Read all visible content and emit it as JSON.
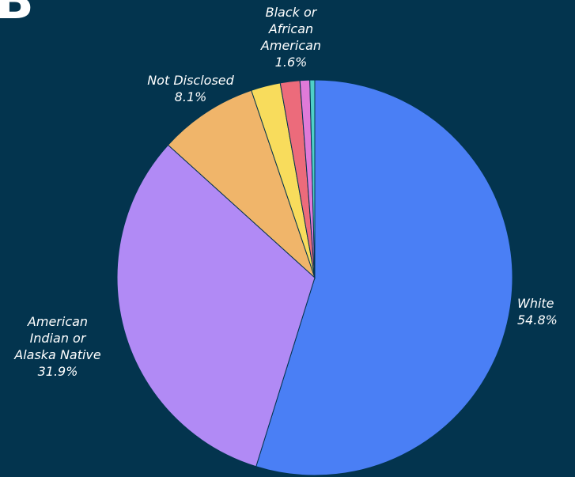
{
  "corner_letter": "B",
  "chart_data": {
    "type": "pie",
    "start_angle_deg": 0,
    "direction": "clockwise",
    "slices": [
      {
        "name": "White",
        "label_lines": [
          "White"
        ],
        "value_label": "54.8%",
        "value": 54.8,
        "color": "#4a7ff5"
      },
      {
        "name": "American Indian or Alaska Native",
        "label_lines": [
          "American",
          "Indian or",
          "Alaska Native"
        ],
        "value_label": "31.9%",
        "value": 31.9,
        "color": "#b18af5"
      },
      {
        "name": "Not Disclosed",
        "label_lines": [
          "Not Disclosed"
        ],
        "value_label": "8.1%",
        "value": 8.1,
        "color": "#f0b56a"
      },
      {
        "name": "",
        "label_lines": [],
        "value_label": "",
        "value": 2.4,
        "color": "#f8dc5c"
      },
      {
        "name": "Black or African American",
        "label_lines": [
          "Black or",
          "African",
          "American"
        ],
        "value_label": "1.6%",
        "value": 1.6,
        "color": "#ec6b7b"
      },
      {
        "name": "",
        "label_lines": [],
        "value_label": "",
        "value": 0.8,
        "color": "#e07ad8"
      },
      {
        "name": "",
        "label_lines": [],
        "value_label": "",
        "value": 0.4,
        "color": "#4fd0c8"
      }
    ]
  }
}
